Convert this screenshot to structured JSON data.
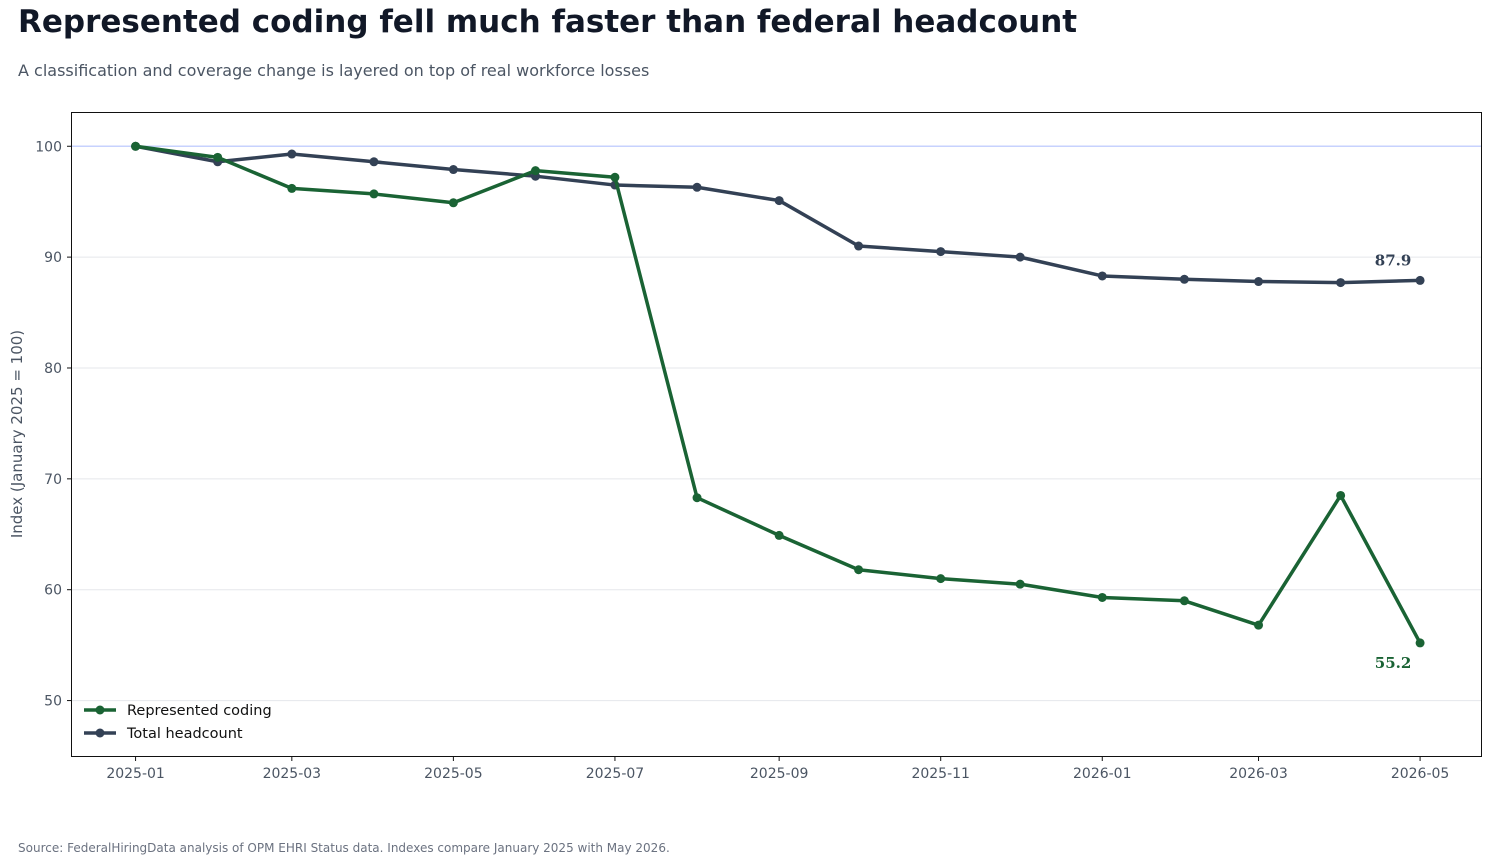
{
  "header": {
    "title": "Represented coding fell much faster than federal headcount",
    "subtitle": "A classification and coverage change is layered on top of real workforce losses"
  },
  "footer": {
    "source": "Source: FederalHiringData analysis of OPM EHRI Status data. Indexes compare January 2025 with May 2026."
  },
  "colors": {
    "represented": "#1a6334",
    "total": "#334155",
    "reference_line": "#c7d2fe",
    "grid": "#e5e7eb"
  },
  "chart_data": {
    "type": "line",
    "title": "Represented coding fell much faster than federal headcount",
    "ylabel": "Index (January 2025 = 100)",
    "xlabel": "",
    "ylim": [
      45,
      103
    ],
    "xlim": [
      "2024-12-08",
      "2026-05-24"
    ],
    "grid": "horizontal",
    "reference_line": 100,
    "legend": "bottom-left",
    "x": [
      "2025-01-01",
      "2025-02-01",
      "2025-03-01",
      "2025-04-01",
      "2025-05-01",
      "2025-06-01",
      "2025-07-01",
      "2025-08-01",
      "2025-09-01",
      "2025-10-01",
      "2025-11-01",
      "2025-12-01",
      "2026-01-01",
      "2026-02-01",
      "2026-03-01",
      "2026-04-01",
      "2026-05-01"
    ],
    "xticks": [
      "2025-01",
      "2025-03",
      "2025-05",
      "2025-07",
      "2025-09",
      "2025-11",
      "2026-01",
      "2026-03",
      "2026-05"
    ],
    "yticks": [
      50,
      60,
      70,
      80,
      90,
      100
    ],
    "series": [
      {
        "name": "Represented coding",
        "color": "#1a6334",
        "values": [
          100.0,
          99.0,
          96.2,
          95.7,
          94.9,
          97.8,
          97.2,
          68.3,
          64.9,
          61.8,
          61.0,
          60.5,
          59.3,
          59.0,
          56.8,
          68.5,
          55.2
        ],
        "end_label": "55.2"
      },
      {
        "name": "Total headcount",
        "color": "#334155",
        "values": [
          100.0,
          98.6,
          99.3,
          98.6,
          97.9,
          97.3,
          96.5,
          96.3,
          95.1,
          91.0,
          90.5,
          90.0,
          88.3,
          88.0,
          87.8,
          87.7,
          87.9
        ],
        "end_label": "87.9"
      }
    ]
  }
}
